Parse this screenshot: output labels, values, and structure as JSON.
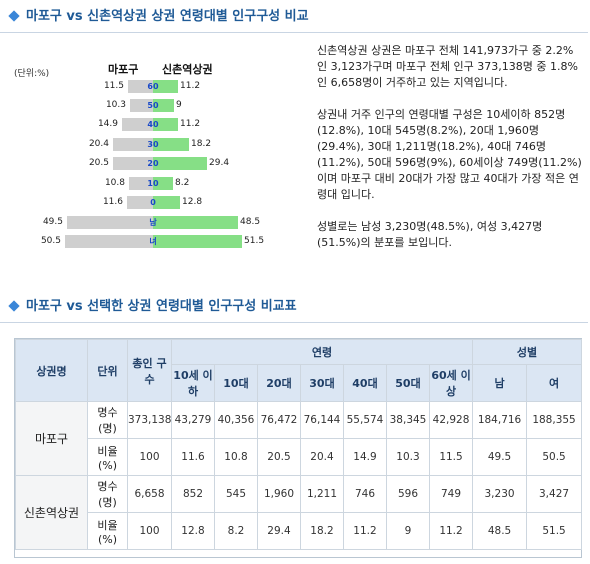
{
  "section1": {
    "title": "마포구 vs 신촌역상권 상권 연령대별 인구구성 비교"
  },
  "section2": {
    "title": "마포구 vs 선택한 상권 연령대별 인구구성 비교표"
  },
  "chart_data": {
    "type": "bar",
    "unit_label": "(단위:%)",
    "left_label": "마포구",
    "right_label": "신촌역상권",
    "categories": [
      "60",
      "50",
      "40",
      "30",
      "20",
      "10",
      "0",
      "남",
      "녀"
    ],
    "series": [
      {
        "name": "마포구",
        "values": [
          11.5,
          10.3,
          14.9,
          20.4,
          20.5,
          10.8,
          11.6,
          49.5,
          50.5
        ],
        "labels": [
          "11.5",
          "10.3",
          "14.9",
          "20.4",
          "20.5",
          "10.8",
          "11.6",
          "49.5",
          "50.5"
        ],
        "color": "#cfcfcf"
      },
      {
        "name": "신촌역상권",
        "values": [
          11.2,
          9,
          11.2,
          18.2,
          29.4,
          8.2,
          12.8,
          48.5,
          51.5
        ],
        "labels": [
          "11.2",
          "9",
          "11.2",
          "18.2",
          "29.4",
          "8.2",
          "12.8",
          "48.5",
          "51.5"
        ],
        "color": "#86df86"
      }
    ]
  },
  "description": {
    "p1": "신촌역상권 상권은 마포구 전체 141,973가구 중 2.2%인 3,123가구며 마포구 전체 인구 373,138명 중 1.8%인 6,658명이 거주하고 있는 지역입니다.",
    "p2": "상권내 거주 인구의 연령대별 구성은 10세이하 852명(12.8%), 10대 545명(8.2%), 20대 1,960명(29.4%), 30대 1,211명(18.2%), 40대 746명(11.2%), 50대 596명(9%), 60세이상 749명(11.2%)이며 마포구 대비 20대가 가장 많고 40대가 가장 적은 연령대 입니다.",
    "p3": "성별로는 남성 3,230명(48.5%), 여성 3,427명(51.5%)의 분포를 보입니다."
  },
  "table": {
    "h_name": "상권명",
    "h_unit": "단위",
    "h_total": "총인 구수",
    "h_age": "연령",
    "h_sex": "성별",
    "ages": [
      "10세 이하",
      "10대",
      "20대",
      "30대",
      "40대",
      "50대",
      "60세 이상"
    ],
    "sexes": [
      "남",
      "여"
    ],
    "rows": [
      {
        "name": "마포구",
        "count_unit": "명수 (명)",
        "ratio_unit": "비율 (%)",
        "count": [
          "373,138",
          "43,279",
          "40,356",
          "76,472",
          "76,144",
          "55,574",
          "38,345",
          "42,928",
          "184,716",
          "188,355"
        ],
        "ratio": [
          "100",
          "11.6",
          "10.8",
          "20.5",
          "20.4",
          "14.9",
          "10.3",
          "11.5",
          "49.5",
          "50.5"
        ]
      },
      {
        "name": "신촌역상권",
        "count_unit": "명수 (명)",
        "ratio_unit": "비율 (%)",
        "count": [
          "6,658",
          "852",
          "545",
          "1,960",
          "1,211",
          "746",
          "596",
          "749",
          "3,230",
          "3,427"
        ],
        "ratio": [
          "100",
          "12.8",
          "8.2",
          "29.4",
          "18.2",
          "11.2",
          "9",
          "11.2",
          "48.5",
          "51.5"
        ]
      }
    ]
  }
}
